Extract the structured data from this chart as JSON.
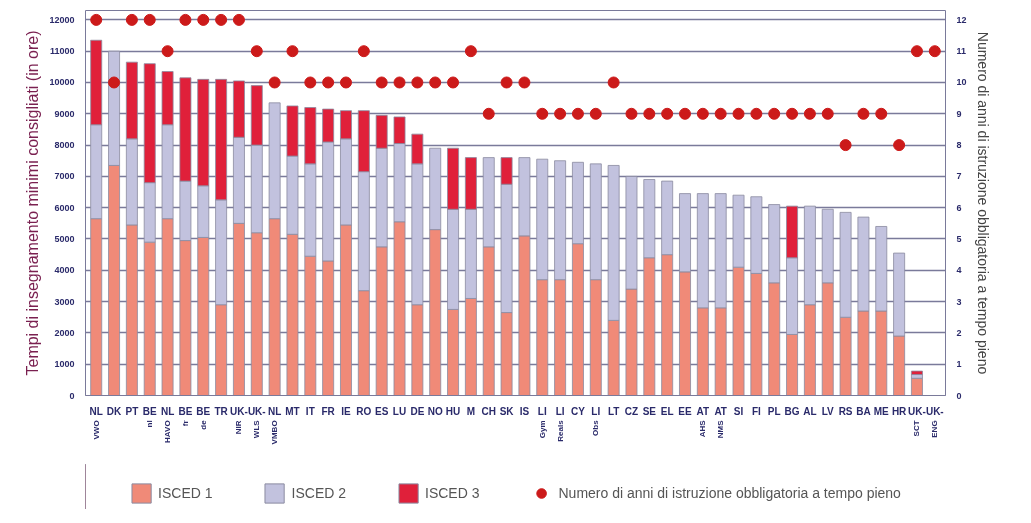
{
  "chart_data": {
    "type": "bar",
    "stacked": true,
    "categories": [
      "NL\nVWO",
      "DK",
      "PT",
      "BE\nnl",
      "NL\nHAVO",
      "BE\nfr",
      "BE\nde",
      "TR",
      "UK-\nNIR",
      "UK-\nWLS",
      "NL\nVMBO",
      "MT",
      "IT",
      "FR",
      "IE",
      "RO",
      "ES",
      "LU",
      "DE",
      "NO",
      "HU",
      "M",
      "CH",
      "SK",
      "IS",
      "LI\nGym",
      "LI\nReals",
      "CY",
      "LI\nObs",
      "LT",
      "CZ",
      "SE",
      "EL",
      "EE",
      "AT\nAHS",
      "AT\nNMS",
      "SI",
      "FI",
      "PL",
      "BG",
      "AL",
      "LV",
      "RS",
      "BA",
      "ME",
      "HR",
      "UK-\nSCT",
      "UK-\nENG"
    ],
    "ylabel": "Tempi di insegnamento minimi consigliati (in ore)",
    "y2label": "Numero di anni di istruzione obbligatoria a tempo pieno",
    "ylim": [
      0,
      12300
    ],
    "yticks": [
      0,
      1000,
      2000,
      3000,
      4000,
      5000,
      6000,
      7000,
      8000,
      9000,
      10000,
      11000,
      12000
    ],
    "y2lim": [
      0,
      12.3
    ],
    "y2ticks": [
      0,
      1,
      2,
      3,
      4,
      5,
      6,
      7,
      8,
      9,
      10,
      11,
      12
    ],
    "grid": "y",
    "legend": "bottom",
    "series": [
      {
        "name": "ISCED 1",
        "color": "#f08a78",
        "values": [
          5650,
          7350,
          5450,
          4900,
          5650,
          4950,
          5050,
          2900,
          5500,
          5200,
          5650,
          5150,
          4450,
          4300,
          5450,
          3350,
          4750,
          5550,
          2900,
          5300,
          2750,
          3100,
          4750,
          2650,
          5100,
          3700,
          3700,
          4850,
          3700,
          2400,
          3400,
          4400,
          4500,
          3950,
          2800,
          2800,
          4100,
          3900,
          3600,
          1950,
          2900,
          3600,
          2500,
          2700,
          2700,
          1900,
          550,
          null
        ]
      },
      {
        "name": "ISCED 2",
        "color": "#c2c2de",
        "values": [
          3000,
          3650,
          2750,
          1900,
          3000,
          1900,
          1650,
          3350,
          2750,
          2800,
          3700,
          2500,
          2950,
          3800,
          2750,
          3800,
          3150,
          2500,
          4500,
          2600,
          3200,
          2850,
          2850,
          4100,
          2500,
          3850,
          3800,
          2600,
          3700,
          4950,
          3600,
          2500,
          2350,
          2500,
          3650,
          3650,
          2300,
          2450,
          2500,
          2450,
          3150,
          2350,
          3350,
          3000,
          2700,
          2650,
          120,
          null
        ]
      },
      {
        "name": "ISCED 3",
        "color": "#e0203a",
        "values": [
          2700,
          null,
          2450,
          3800,
          1700,
          3300,
          3400,
          3850,
          1800,
          1900,
          null,
          1600,
          1800,
          1050,
          900,
          1950,
          1050,
          850,
          950,
          null,
          1950,
          1650,
          null,
          850,
          null,
          null,
          null,
          null,
          null,
          null,
          null,
          null,
          null,
          null,
          null,
          null,
          null,
          null,
          null,
          1650,
          null,
          null,
          null,
          null,
          null,
          null,
          110,
          null
        ]
      },
      {
        "name": "Numero di anni di istruzione obbligatoria a tempo pieno",
        "type": "scatter",
        "axis": "y2",
        "marker": "circle",
        "color": "#cc1a1a",
        "values": [
          12,
          10,
          12,
          12,
          11,
          12,
          12,
          12,
          12,
          11,
          10,
          11,
          10,
          10,
          10,
          11,
          10,
          10,
          10,
          10,
          10,
          11,
          9,
          10,
          10,
          9,
          9,
          9,
          9,
          10,
          9,
          9,
          9,
          9,
          9,
          9,
          9,
          9,
          9,
          9,
          9,
          9,
          8,
          9,
          9,
          8,
          11,
          11
        ]
      }
    ]
  }
}
